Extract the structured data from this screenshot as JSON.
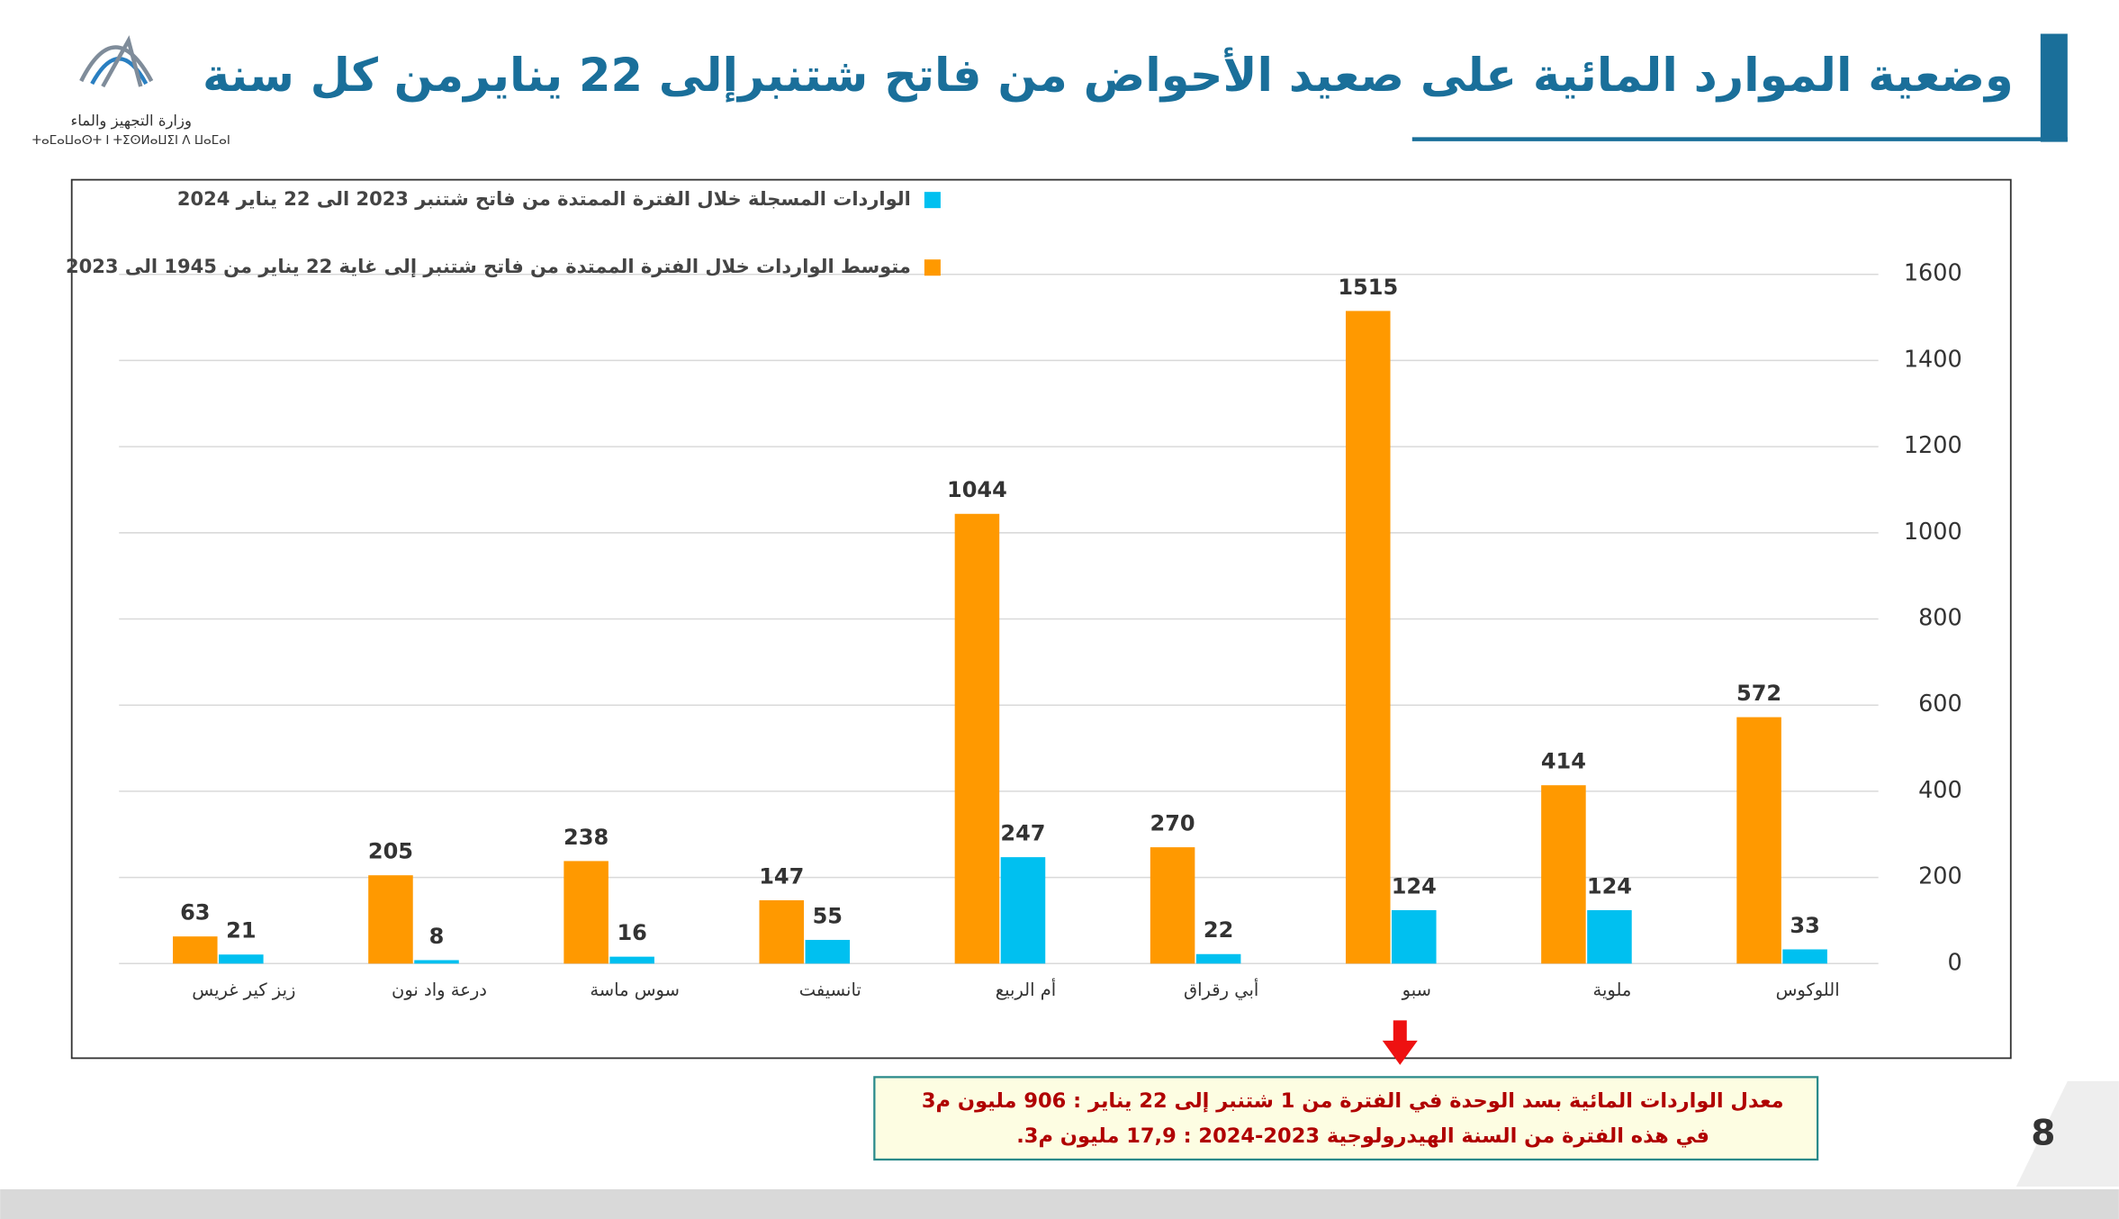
{
  "header": {
    "title": "وضعية الموارد المائية على صعيد الأحواض من فاتح شتنبرإلى 22 ينايرمن كل سنة",
    "ministry": "وزارة التجهيز والماء",
    "ministry_tifinagh": "ⵜⴰⵎⴰⵡⴰⵙⵜ ⵏ ⵜⵉⵙⵍⴰⵡⵉⵏ ⴷ ⵡⴰⵎⴰⵏ"
  },
  "chart_data": {
    "type": "bar",
    "categories": [
      "زيز كير غريس",
      "درعة واد نون",
      "سوس ماسة",
      "تانسيفت",
      "أم الربيع",
      "أبي رقراق",
      "سبو",
      "ملوية",
      "اللوكوس"
    ],
    "series": [
      {
        "name": "متوسط الواردات خلال الفترة الممتدة من فاتح شتنبر إلى غاية 22 يناير من 1945 الى 2023",
        "color": "#ff9900",
        "values": [
          63,
          205,
          238,
          147,
          1044,
          270,
          1515,
          414,
          572
        ]
      },
      {
        "name": "الواردات المسجلة خلال الفترة الممتدة من فاتح شتنبر 2023 الى 22 يناير 2024",
        "color": "#00c0f0",
        "values": [
          21,
          8,
          16,
          55,
          247,
          22,
          124,
          124,
          33
        ]
      }
    ],
    "ylim": [
      0,
      1600
    ],
    "yticks": [
      0,
      200,
      400,
      600,
      800,
      1000,
      1200,
      1400,
      1600
    ],
    "grid": true,
    "legend": "top-left"
  },
  "note": {
    "lines": [
      "معدل الواردات المائية بسد الوحدة في الفترة من 1 شتنبر إلى 22 يناير : 906 مليون م3",
      "في هذه الفترة من السنة الهيدرولوجية 2023-2024 : 17,9 مليون م3."
    ]
  },
  "page_number": "8"
}
